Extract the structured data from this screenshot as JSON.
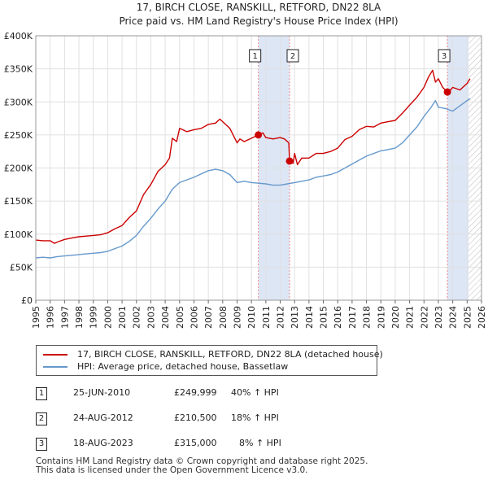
{
  "chart_data": {
    "type": "line",
    "title": "17, BIRCH CLOSE, RANSKILL, RETFORD, DN22 8LA",
    "subtitle": "Price paid vs. HM Land Registry's House Price Index (HPI)",
    "xlim": [
      1995.0,
      2026.0
    ],
    "ylim": [
      0,
      400000
    ],
    "y_ticks": [
      0,
      50000,
      100000,
      150000,
      200000,
      250000,
      300000,
      350000,
      400000
    ],
    "y_tick_labels": [
      "£0",
      "£50K",
      "£100K",
      "£150K",
      "£200K",
      "£250K",
      "£300K",
      "£350K",
      "£400K"
    ],
    "x_ticks": [
      1995,
      1996,
      1997,
      1998,
      1999,
      2000,
      2001,
      2002,
      2003,
      2004,
      2005,
      2006,
      2007,
      2008,
      2009,
      2010,
      2011,
      2012,
      2013,
      2014,
      2015,
      2016,
      2017,
      2018,
      2019,
      2020,
      2021,
      2022,
      2023,
      2024,
      2025,
      2026
    ],
    "x_tick_labels": [
      "1995",
      "1996",
      "1997",
      "1998",
      "1999",
      "2000",
      "2001",
      "2002",
      "2003",
      "2004",
      "2005",
      "2006",
      "2007",
      "2008",
      "2009",
      "2010",
      "2011",
      "2012",
      "2013",
      "2014",
      "2015",
      "2016",
      "2017",
      "2018",
      "2019",
      "2020",
      "2021",
      "2022",
      "2023",
      "2024",
      "2025",
      "2026"
    ],
    "grid": true,
    "shaded_regions": [
      {
        "x0": 2010.48,
        "x1": 2012.65,
        "color": "#dde6f5"
      },
      {
        "x0": 2023.63,
        "x1": 2025.1,
        "color": "#dde6f5"
      }
    ],
    "hatched_region": {
      "x0": 2025.1,
      "x1": 2026.0
    },
    "series": [
      {
        "name": "17, BIRCH CLOSE, RANSKILL, RETFORD, DN22 8LA (detached house)",
        "color": "#cc0000",
        "x": [
          1995.0,
          1995.5,
          1996.0,
          1996.3,
          1996.5,
          1997.0,
          1997.5,
          1998.0,
          1998.5,
          1999.0,
          1999.5,
          2000.0,
          2000.5,
          2001.0,
          2001.5,
          2002.0,
          2002.5,
          2003.0,
          2003.5,
          2004.0,
          2004.3,
          2004.5,
          2004.8,
          2005.0,
          2005.5,
          2006.0,
          2006.5,
          2007.0,
          2007.5,
          2007.8,
          2008.0,
          2008.5,
          2009.0,
          2009.2,
          2009.5,
          2010.0,
          2010.48,
          2010.8,
          2011.0,
          2011.5,
          2012.0,
          2012.3,
          2012.6,
          2012.65,
          2012.9,
          2013.0,
          2013.2,
          2013.5,
          2014.0,
          2014.5,
          2015.0,
          2015.5,
          2016.0,
          2016.5,
          2017.0,
          2017.5,
          2018.0,
          2018.5,
          2019.0,
          2019.5,
          2020.0,
          2020.5,
          2021.0,
          2021.5,
          2022.0,
          2022.3,
          2022.6,
          2022.8,
          2023.0,
          2023.3,
          2023.63,
          2023.8,
          2024.0,
          2024.5,
          2025.0,
          2025.2
        ],
        "values": [
          91000,
          90000,
          90000,
          86000,
          88000,
          92000,
          94000,
          96000,
          97000,
          98000,
          99000,
          102000,
          108000,
          113000,
          125000,
          135000,
          160000,
          175000,
          195000,
          205000,
          215000,
          245000,
          240000,
          260000,
          255000,
          258000,
          260000,
          266000,
          268000,
          274000,
          270000,
          260000,
          238000,
          244000,
          240000,
          245000,
          249999,
          253000,
          246000,
          244000,
          246000,
          244000,
          238000,
          210500,
          207000,
          222000,
          205000,
          215000,
          215000,
          222000,
          222000,
          225000,
          230000,
          243000,
          248000,
          258000,
          263000,
          262000,
          268000,
          270000,
          272000,
          283000,
          295000,
          307000,
          322000,
          337000,
          348000,
          330000,
          335000,
          322000,
          315000,
          317000,
          322000,
          318000,
          328000,
          335000
        ]
      },
      {
        "name": "HPI: Average price, detached house, Bassetlaw",
        "color": "#6699cc",
        "x": [
          1995.0,
          1995.5,
          1996.0,
          1996.5,
          1997.0,
          1997.5,
          1998.0,
          1998.5,
          1999.0,
          1999.5,
          2000.0,
          2000.5,
          2001.0,
          2001.5,
          2002.0,
          2002.5,
          2003.0,
          2003.5,
          2004.0,
          2004.5,
          2005.0,
          2005.5,
          2006.0,
          2006.5,
          2007.0,
          2007.5,
          2008.0,
          2008.5,
          2009.0,
          2009.5,
          2010.0,
          2010.5,
          2011.0,
          2011.5,
          2012.0,
          2012.5,
          2013.0,
          2013.5,
          2014.0,
          2014.5,
          2015.0,
          2015.5,
          2016.0,
          2016.5,
          2017.0,
          2017.5,
          2018.0,
          2018.5,
          2019.0,
          2019.5,
          2020.0,
          2020.5,
          2021.0,
          2021.5,
          2022.0,
          2022.5,
          2022.8,
          2023.0,
          2023.5,
          2024.0,
          2024.5,
          2025.0,
          2025.2
        ],
        "values": [
          64000,
          65000,
          64000,
          66000,
          67000,
          68000,
          69000,
          70000,
          71000,
          72000,
          74000,
          78000,
          82000,
          89000,
          98000,
          112000,
          124000,
          138000,
          150000,
          168000,
          178000,
          182000,
          186000,
          191000,
          196000,
          198000,
          196000,
          190000,
          178000,
          180000,
          178000,
          177000,
          176000,
          174000,
          174000,
          176000,
          178000,
          180000,
          182000,
          186000,
          188000,
          190000,
          194000,
          200000,
          206000,
          212000,
          218000,
          222000,
          226000,
          228000,
          230000,
          238000,
          250000,
          262000,
          278000,
          292000,
          302000,
          292000,
          290000,
          286000,
          294000,
          302000,
          305000
        ]
      }
    ],
    "markers": [
      {
        "id": "1",
        "x": 2010.48,
        "y": 249999
      },
      {
        "id": "2",
        "x": 2012.65,
        "y": 210500
      },
      {
        "id": "3",
        "x": 2023.63,
        "y": 315000
      }
    ]
  },
  "legend": {
    "items": [
      {
        "label": "17, BIRCH CLOSE, RANSKILL, RETFORD, DN22 8LA (detached house)",
        "color": "#cc0000"
      },
      {
        "label": "HPI: Average price, detached house, Bassetlaw",
        "color": "#6699cc"
      }
    ]
  },
  "transactions": [
    {
      "num": "1",
      "date": "25-JUN-2010",
      "price": "£249,999",
      "hpi": "40% ↑ HPI"
    },
    {
      "num": "2",
      "date": "24-AUG-2012",
      "price": "£210,500",
      "hpi": "18% ↑ HPI"
    },
    {
      "num": "3",
      "date": "18-AUG-2023",
      "price": "£315,000",
      "hpi": "8% ↑ HPI"
    }
  ],
  "footer": {
    "line1": "Contains HM Land Registry data © Crown copyright and database right 2025.",
    "line2": "This data is licensed under the Open Government Licence v3.0."
  }
}
